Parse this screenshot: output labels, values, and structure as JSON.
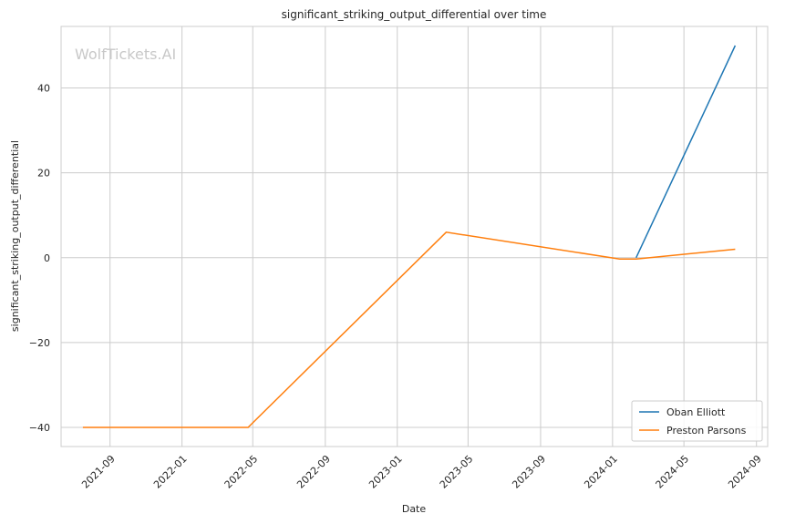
{
  "chart_data": {
    "type": "line",
    "title": "significant_striking_output_differential over time",
    "xlabel": "Date",
    "ylabel": "significant_striking_output_differential",
    "watermark": "WolfTickets.AI",
    "x_ticks": [
      "2021-09",
      "2022-01",
      "2022-05",
      "2022-09",
      "2023-01",
      "2023-05",
      "2023-09",
      "2024-01",
      "2024-05",
      "2024-09"
    ],
    "y_ticks": [
      -40,
      -20,
      0,
      20,
      40
    ],
    "xlim": [
      "2021-06-10",
      "2024-09-20"
    ],
    "ylim": [
      -44.5,
      54.5
    ],
    "grid": true,
    "legend_position": "bottom-right",
    "series": [
      {
        "name": "Oban Elliott",
        "color": "#1f77b4",
        "points": [
          {
            "x": "2024-02-10",
            "y": 0
          },
          {
            "x": "2024-07-27",
            "y": 50
          }
        ]
      },
      {
        "name": "Preston Parsons",
        "color": "#ff7f0e",
        "points": [
          {
            "x": "2021-07-17",
            "y": -40
          },
          {
            "x": "2022-04-23",
            "y": -40
          },
          {
            "x": "2023-03-25",
            "y": 6
          },
          {
            "x": "2024-01-13",
            "y": -0.3
          },
          {
            "x": "2024-02-10",
            "y": -0.3
          },
          {
            "x": "2024-07-27",
            "y": 2
          }
        ]
      }
    ]
  }
}
